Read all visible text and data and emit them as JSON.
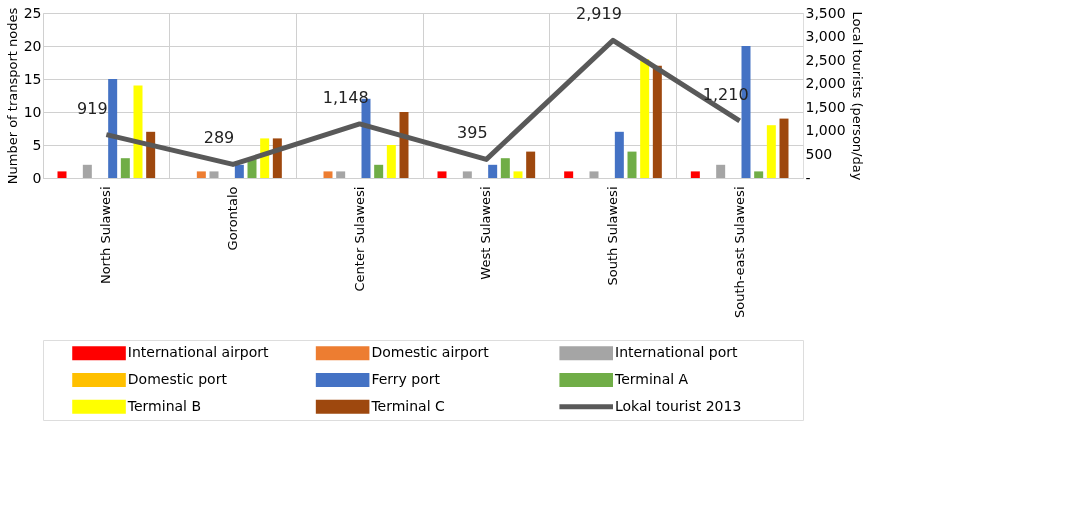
{
  "chart_data": {
    "type": "bar",
    "ylabel": "Number of transport nodes",
    "y2label": "Local tourists (person/day",
    "categories": [
      "North Sulawesi",
      "Gorontalo",
      "Center Sulawesi",
      "West Sulawesi",
      "South Sulawesi",
      "South-east Sulawesi"
    ],
    "series": [
      {
        "name": "International airport",
        "color": "#ff0000",
        "values": [
          1,
          0,
          0,
          1,
          1,
          1
        ]
      },
      {
        "name": "Domestic airport",
        "color": "#ed7d31",
        "values": [
          0,
          1,
          1,
          0,
          0,
          0
        ]
      },
      {
        "name": "International port",
        "color": "#a5a5a5",
        "values": [
          2,
          1,
          1,
          1,
          1,
          2
        ]
      },
      {
        "name": "Domestic port",
        "color": "#ffc000",
        "values": [
          0,
          0,
          0,
          0,
          0,
          0
        ]
      },
      {
        "name": "Ferry port",
        "color": "#4472c4",
        "values": [
          15,
          2,
          12,
          2,
          7,
          20
        ]
      },
      {
        "name": "Terminal A",
        "color": "#70ad47",
        "values": [
          3,
          3,
          2,
          3,
          4,
          1
        ]
      },
      {
        "name": "Terminal B",
        "color": "#ffff00",
        "values": [
          14,
          6,
          5,
          1,
          18,
          8
        ]
      },
      {
        "name": "Terminal C",
        "color": "#9e480e",
        "values": [
          7,
          6,
          10,
          4,
          17,
          9
        ]
      },
      {
        "name": "Lokal tourist 2013",
        "color": "#595959",
        "type": "line",
        "axis": "y2",
        "values": [
          919,
          289,
          1148,
          395,
          2919,
          1210
        ],
        "value_labels": [
          "919",
          "289",
          "1,148",
          "395",
          "2,919",
          "1,210"
        ]
      }
    ],
    "ylim": [
      0,
      25
    ],
    "yticks": [
      0,
      5,
      10,
      15,
      20,
      25
    ],
    "y2lim": [
      0,
      3500
    ],
    "y2ticks": [
      {
        "value": 0,
        "label": "-"
      },
      500,
      {
        "value": 1000,
        "label": "1,000"
      },
      {
        "value": 1500,
        "label": "1,500"
      },
      {
        "value": 2000,
        "label": "2,000"
      },
      {
        "value": 2500,
        "label": "2,500"
      },
      {
        "value": 3000,
        "label": "3,000"
      },
      {
        "value": 3500,
        "label": "3,500"
      }
    ],
    "grid": true,
    "legend": "bottom"
  }
}
